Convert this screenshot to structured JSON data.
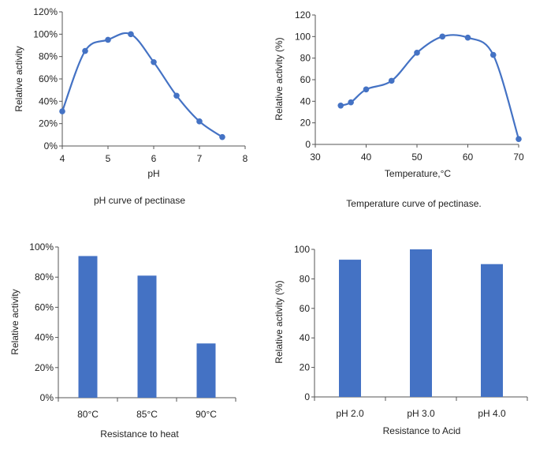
{
  "colors": {
    "series": "#4472C4",
    "axis": "#555555",
    "text": "#222222"
  },
  "chart_data": [
    {
      "type": "line",
      "caption": "pH curve of pectinase",
      "xlabel": "pH",
      "ylabel": "Relative activity",
      "xlim": [
        4,
        8
      ],
      "ylim": [
        0,
        120
      ],
      "xticks": [
        "4",
        "5",
        "6",
        "7",
        "8"
      ],
      "yticks": [
        "0%",
        "20%",
        "40%",
        "60%",
        "80%",
        "100%",
        "120%"
      ],
      "x": [
        4,
        4.5,
        5,
        5.5,
        6,
        6.5,
        7,
        7.5
      ],
      "y": [
        31,
        85,
        95,
        100,
        75,
        45,
        22,
        8
      ],
      "smooth": true,
      "markers": true,
      "grid": false
    },
    {
      "type": "line",
      "caption": "Temperature curve of pectinase.",
      "xlabel": "Temperature,°C",
      "ylabel": "Relative activity (%)",
      "xlim": [
        30,
        70
      ],
      "ylim": [
        0,
        120
      ],
      "xticks": [
        "30",
        "40",
        "50",
        "60",
        "70"
      ],
      "yticks": [
        "0",
        "20",
        "40",
        "60",
        "80",
        "100",
        "120"
      ],
      "x": [
        35,
        37,
        40,
        45,
        50,
        55,
        60,
        65,
        70
      ],
      "y": [
        36,
        39,
        51,
        59,
        85,
        100,
        99,
        83,
        5
      ],
      "smooth": true,
      "markers": true,
      "grid": false
    },
    {
      "type": "bar",
      "caption": "Resistance to heat",
      "ylabel": "Relative activity",
      "ylim": [
        0,
        100
      ],
      "yticks": [
        "0%",
        "20%",
        "40%",
        "60%",
        "80%",
        "100%"
      ],
      "categories": [
        "80°C",
        "85°C",
        "90°C"
      ],
      "values": [
        94,
        81,
        36
      ],
      "grid": false
    },
    {
      "type": "bar",
      "caption": "Resistance to Acid",
      "ylabel": "Relative activity (%)",
      "ylim": [
        0,
        100
      ],
      "yticks": [
        "0",
        "20",
        "40",
        "60",
        "80",
        "100"
      ],
      "categories": [
        "pH 2.0",
        "pH 3.0",
        "pH 4.0"
      ],
      "values": [
        93,
        100,
        90
      ],
      "grid": false
    }
  ]
}
